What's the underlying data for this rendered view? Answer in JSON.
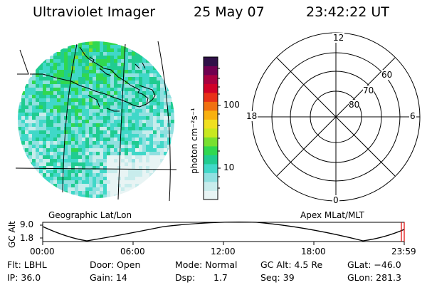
{
  "header": {
    "instrument": "Ultraviolet Imager",
    "date": "25 May 07",
    "time": "23:42:22 UT"
  },
  "colorbar": {
    "unit_label": "photon cm⁻²s⁻¹",
    "ticks": [
      "100",
      "10"
    ],
    "colors": [
      "#e8f4f4",
      "#c8ecec",
      "#90e0e0",
      "#40d8c8",
      "#20cc90",
      "#30d850",
      "#78e030",
      "#c8e820",
      "#f0e020",
      "#f8b010",
      "#f07010",
      "#e83018",
      "#d00028",
      "#a80040",
      "#700050",
      "#301048"
    ]
  },
  "maps": {
    "left_label": "Geographic Lat/Lon",
    "right_label": "Apex MLat/MLT",
    "polar_mlt_labels": {
      "top": "12",
      "left": "18",
      "right": "6",
      "bottom": "0"
    },
    "polar_lat_labels": [
      "60",
      "70",
      "80"
    ]
  },
  "altitude_plot": {
    "ylabel": "GC Alt",
    "yticks": [
      "9.0",
      "1.8"
    ],
    "xticks": [
      "00:00",
      "06:00",
      "12:00",
      "18:00",
      "23:59"
    ],
    "current_marker_color": "#e00000"
  },
  "footer": {
    "row1": {
      "filter": "Flt: LBHL",
      "door": "Door: Open",
      "mode": "Mode: Normal",
      "gc_alt": "GC Alt: 4.5 Re",
      "glat": "GLat: −46.0"
    },
    "row2": {
      "ip": "IP: 36.0",
      "gain": "Gain: 14",
      "dsp_label": "Dsp:",
      "dsp_value": "1.7",
      "seq": "Seq: 39",
      "glon": "GLon: 281.3"
    }
  }
}
